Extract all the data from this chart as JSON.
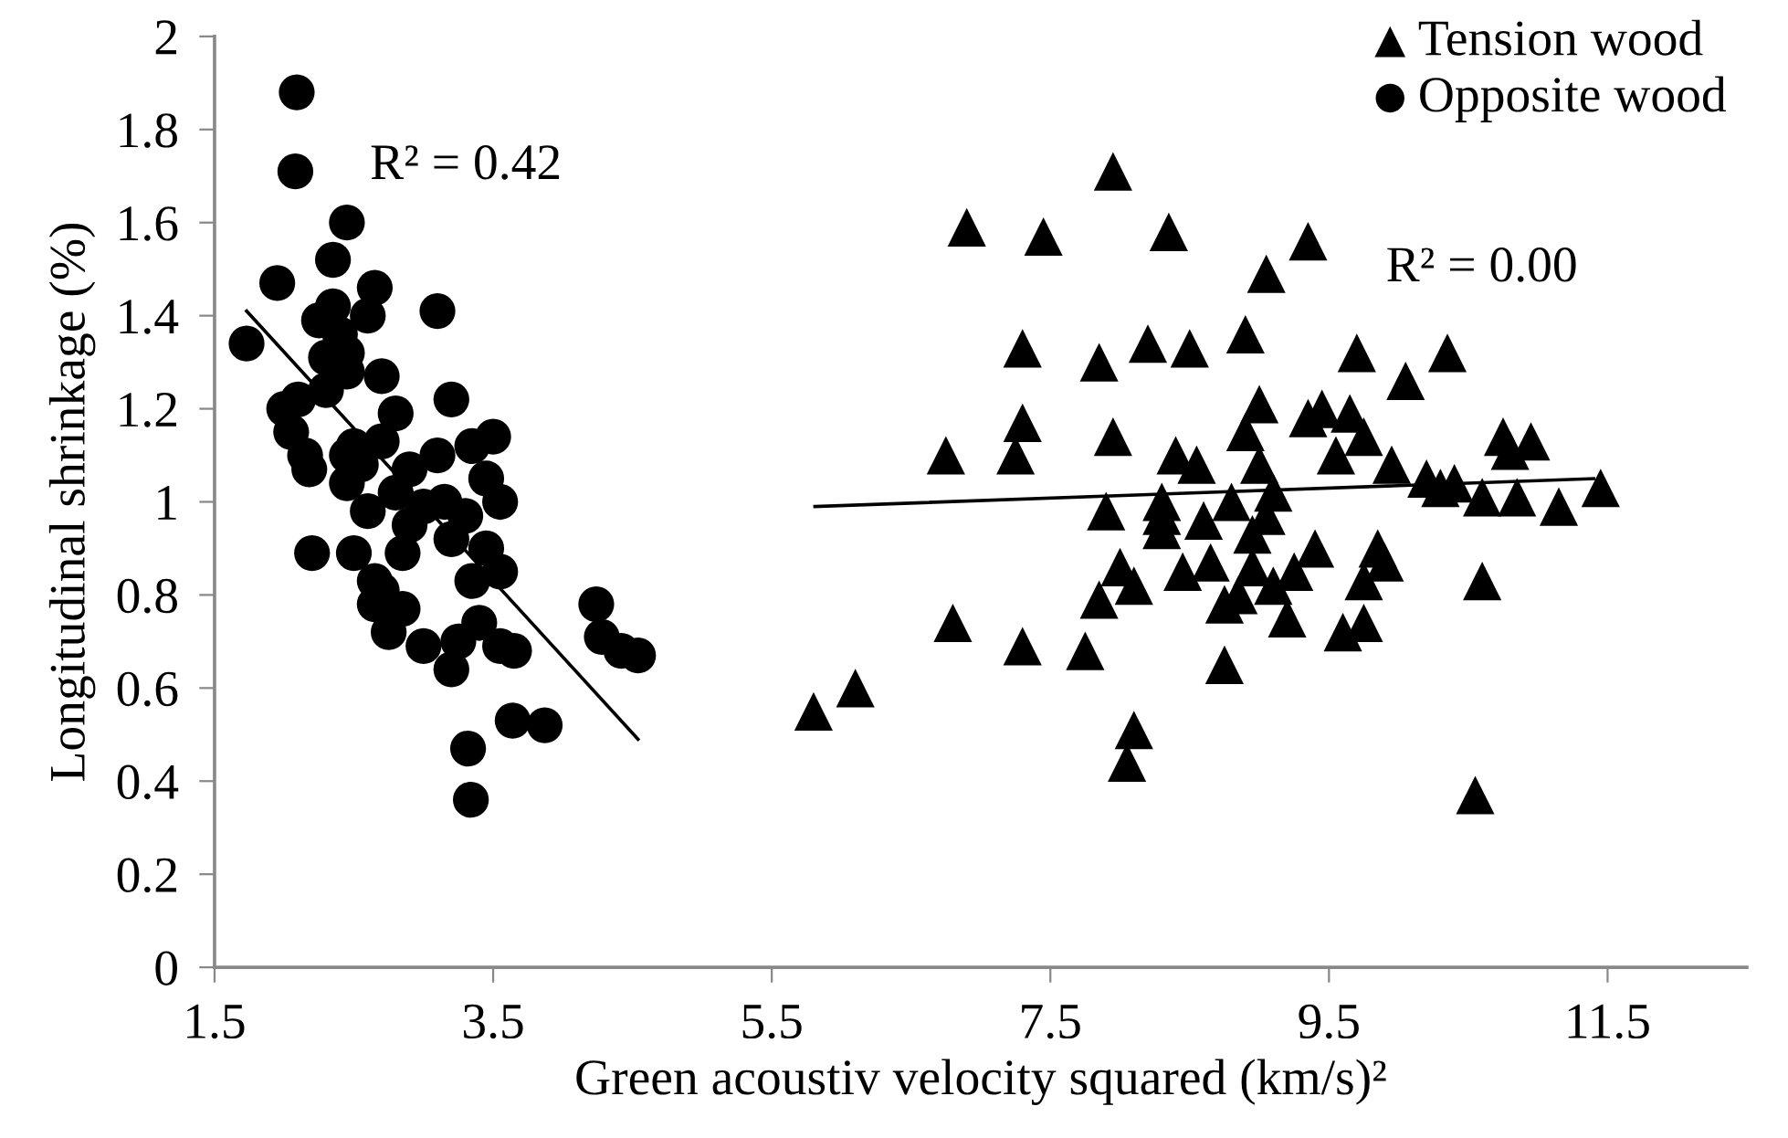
{
  "chart_data": {
    "type": "scatter",
    "xlabel": "Green acoustiv velocity squared (km/s)²",
    "ylabel": "Longitudinal shrinkage (%)",
    "xlim": [
      1.5,
      12.5
    ],
    "xticks": [
      1.5,
      3.5,
      5.5,
      7.5,
      9.5,
      11.5
    ],
    "ylim": [
      0,
      2
    ],
    "yticks": [
      0,
      0.2,
      0.4,
      0.6,
      0.8,
      1,
      1.2,
      1.4,
      1.6,
      1.8,
      2
    ],
    "grid": false,
    "legend": "top right",
    "series": [
      {
        "name": "Tension wood",
        "color": "#000000",
        "marker": "triangle",
        "x": [
          5.8,
          6.1,
          6.75,
          6.8,
          6.9,
          7.25,
          7.3,
          7.3,
          7.3,
          7.45,
          7.75,
          7.85,
          7.85,
          7.9,
          7.95,
          7.95,
          8.0,
          8.05,
          8.1,
          8.1,
          8.2,
          8.3,
          8.3,
          8.35,
          8.3,
          8.4,
          8.45,
          8.5,
          8.55,
          8.6,
          8.65,
          8.75,
          8.75,
          8.8,
          8.85,
          8.9,
          8.9,
          8.95,
          8.95,
          9.0,
          9.0,
          9.05,
          9.05,
          9.1,
          9.1,
          9.2,
          9.25,
          9.35,
          9.35,
          9.4,
          9.45,
          9.55,
          9.6,
          9.65,
          9.7,
          9.75,
          9.75,
          9.75,
          9.85,
          9.9,
          9.95,
          10.05,
          10.2,
          10.3,
          10.35,
          10.4,
          10.55,
          10.6,
          10.6,
          10.75,
          10.8,
          10.85,
          10.95,
          11.15,
          11.45
        ],
        "values": [
          0.55,
          0.6,
          1.1,
          0.74,
          1.59,
          1.1,
          1.17,
          1.33,
          0.69,
          1.57,
          0.68,
          1.3,
          0.79,
          0.98,
          1.71,
          1.14,
          0.86,
          0.44,
          0.51,
          0.82,
          1.34,
          1.0,
          0.94,
          1.58,
          0.97,
          1.1,
          0.85,
          1.33,
          1.08,
          0.96,
          0.87,
          0.78,
          0.65,
          1.0,
          0.8,
          1.36,
          1.15,
          0.93,
          0.86,
          1.21,
          1.08,
          1.49,
          0.97,
          0.82,
          1.02,
          0.75,
          0.85,
          1.56,
          1.18,
          0.9,
          1.2,
          1.1,
          0.72,
          1.19,
          1.32,
          1.14,
          0.83,
          0.74,
          0.9,
          0.87,
          1.08,
          1.26,
          1.05,
          1.03,
          1.32,
          1.04,
          0.37,
          0.83,
          1.01,
          1.14,
          1.11,
          1.01,
          1.13,
          0.99,
          1.03
        ]
      },
      {
        "name": "Opposite wood",
        "color": "#000000",
        "marker": "circle",
        "x": [
          1.73,
          1.95,
          2.09,
          2.08,
          2.0,
          2.05,
          2.1,
          2.15,
          2.18,
          2.2,
          2.25,
          2.3,
          2.3,
          2.35,
          2.35,
          2.4,
          2.45,
          2.45,
          2.45,
          2.45,
          2.45,
          2.5,
          2.5,
          2.55,
          2.6,
          2.6,
          2.65,
          2.7,
          2.7,
          2.65,
          2.65,
          2.7,
          2.75,
          2.8,
          2.8,
          2.85,
          2.85,
          2.9,
          2.9,
          3.0,
          3.0,
          3.1,
          3.1,
          3.15,
          3.2,
          3.2,
          3.2,
          3.25,
          3.3,
          3.35,
          3.35,
          3.4,
          3.32,
          3.34,
          3.45,
          3.45,
          3.5,
          3.55,
          3.55,
          3.55,
          3.65,
          3.64,
          3.87,
          4.24,
          4.28,
          4.42,
          4.54
        ],
        "values": [
          1.34,
          1.47,
          1.88,
          1.71,
          1.2,
          1.15,
          1.22,
          1.1,
          1.07,
          0.89,
          1.39,
          1.31,
          1.24,
          1.52,
          1.42,
          1.36,
          1.6,
          1.32,
          1.28,
          1.1,
          1.04,
          0.89,
          1.12,
          1.08,
          0.98,
          1.4,
          1.46,
          1.13,
          1.27,
          0.83,
          0.78,
          0.81,
          0.72,
          1.19,
          1.02,
          0.89,
          0.77,
          1.07,
          0.95,
          0.99,
          0.69,
          1.41,
          1.1,
          1.0,
          0.92,
          1.22,
          0.64,
          0.7,
          0.97,
          1.12,
          0.83,
          0.74,
          0.47,
          0.36,
          1.05,
          0.9,
          1.14,
          0.85,
          0.69,
          1.0,
          0.68,
          0.53,
          0.52,
          0.78,
          0.71,
          0.68,
          0.67
        ]
      },
      {
        "type": "line",
        "color": "#000000",
        "x": [
          1.73,
          4.54
        ],
        "values": [
          1.41,
          0.49
        ]
      },
      {
        "type": "line",
        "color": "#000000",
        "x": [
          5.81,
          11.4
        ],
        "values": [
          0.99,
          1.05
        ]
      }
    ],
    "annotations": [
      "R² = 0.42",
      "R² = 0.00"
    ]
  }
}
